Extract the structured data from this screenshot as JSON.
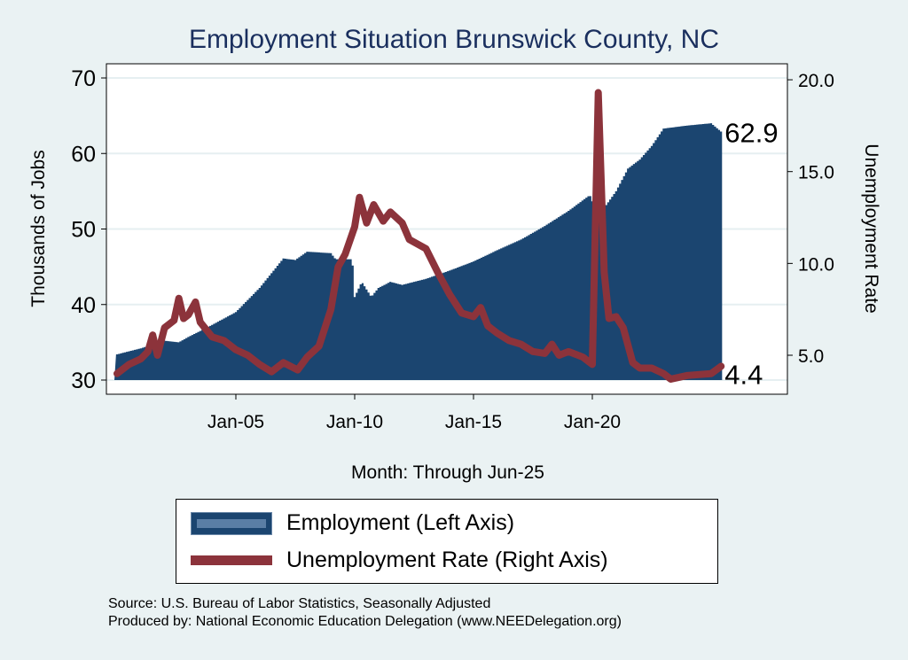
{
  "chart_data": {
    "type": "area+line",
    "title": "Employment Situation Brunswick  County, NC",
    "xlabel": "Month: Through Jun-25",
    "ylabel": "Thousands of Jobs",
    "y2label": "Unemployment Rate",
    "x_ticks": [
      {
        "label": "Jan-05",
        "x": 2005
      },
      {
        "label": "Jan-10",
        "x": 2010
      },
      {
        "label": "Jan-15",
        "x": 2015
      },
      {
        "label": "Jan-20",
        "x": 2020
      }
    ],
    "y_ticks": [
      "30",
      "40",
      "50",
      "60",
      "70"
    ],
    "y_tick_values": [
      30,
      40,
      50,
      60,
      70
    ],
    "y2_ticks": [
      "5.0",
      "10.0",
      "15.0",
      "20.0"
    ],
    "y2_tick_values": [
      5,
      10,
      15,
      20
    ],
    "ylim": [
      30,
      70
    ],
    "y2lim": [
      5,
      20
    ],
    "grid": true,
    "series": [
      {
        "name": "Employment (Left Axis)",
        "axis": "left",
        "color": "#1b4570",
        "points": [
          [
            2000.0,
            33.4
          ],
          [
            2001.0,
            34.2
          ],
          [
            2002.0,
            35.2
          ],
          [
            2002.6,
            35.0
          ],
          [
            2003.0,
            35.7
          ],
          [
            2004.0,
            37.3
          ],
          [
            2005.0,
            39.0
          ],
          [
            2006.0,
            42.2
          ],
          [
            2007.0,
            46.1
          ],
          [
            2007.5,
            45.9
          ],
          [
            2008.0,
            47.0
          ],
          [
            2009.0,
            46.8
          ],
          [
            2009.2,
            46.0
          ],
          [
            2009.9,
            46.0
          ],
          [
            2010.0,
            41.0
          ],
          [
            2010.3,
            43.0
          ],
          [
            2010.7,
            41.0
          ],
          [
            2011.0,
            42.2
          ],
          [
            2011.5,
            43.0
          ],
          [
            2012.0,
            42.6
          ],
          [
            2013.0,
            43.4
          ],
          [
            2014.0,
            44.5
          ],
          [
            2015.0,
            45.7
          ],
          [
            2016.0,
            47.2
          ],
          [
            2017.0,
            48.6
          ],
          [
            2018.0,
            50.4
          ],
          [
            2019.0,
            52.4
          ],
          [
            2019.9,
            54.5
          ],
          [
            2020.25,
            51.6
          ],
          [
            2020.5,
            52.8
          ],
          [
            2021.0,
            55.0
          ],
          [
            2021.5,
            58.0
          ],
          [
            2022.0,
            59.2
          ],
          [
            2022.5,
            61.0
          ],
          [
            2023.0,
            63.3
          ],
          [
            2024.0,
            63.7
          ],
          [
            2025.0,
            64.0
          ],
          [
            2025.42,
            62.9
          ]
        ]
      },
      {
        "name": "Unemployment Rate (Right Axis)",
        "axis": "right",
        "color": "#8c333b",
        "points": [
          [
            2000.0,
            4.0
          ],
          [
            2000.5,
            4.5
          ],
          [
            2001.0,
            4.8
          ],
          [
            2001.3,
            5.2
          ],
          [
            2001.5,
            6.1
          ],
          [
            2001.7,
            5.0
          ],
          [
            2002.0,
            6.5
          ],
          [
            2002.4,
            6.9
          ],
          [
            2002.6,
            8.1
          ],
          [
            2002.8,
            7.0
          ],
          [
            2003.0,
            7.2
          ],
          [
            2003.3,
            7.9
          ],
          [
            2003.5,
            6.8
          ],
          [
            2004.0,
            6.0
          ],
          [
            2004.5,
            5.8
          ],
          [
            2005.0,
            5.3
          ],
          [
            2005.5,
            5.0
          ],
          [
            2006.0,
            4.5
          ],
          [
            2006.5,
            4.1
          ],
          [
            2007.0,
            4.6
          ],
          [
            2007.6,
            4.2
          ],
          [
            2008.0,
            4.9
          ],
          [
            2008.5,
            5.5
          ],
          [
            2009.0,
            7.5
          ],
          [
            2009.3,
            9.8
          ],
          [
            2009.6,
            10.5
          ],
          [
            2010.0,
            12.0
          ],
          [
            2010.2,
            13.6
          ],
          [
            2010.5,
            12.2
          ],
          [
            2010.8,
            13.2
          ],
          [
            2011.2,
            12.3
          ],
          [
            2011.5,
            12.8
          ],
          [
            2012.0,
            12.2
          ],
          [
            2012.3,
            11.3
          ],
          [
            2013.0,
            10.8
          ],
          [
            2013.5,
            9.5
          ],
          [
            2014.0,
            8.3
          ],
          [
            2014.5,
            7.3
          ],
          [
            2015.0,
            7.1
          ],
          [
            2015.3,
            7.6
          ],
          [
            2015.6,
            6.6
          ],
          [
            2016.0,
            6.2
          ],
          [
            2016.5,
            5.8
          ],
          [
            2017.0,
            5.6
          ],
          [
            2017.5,
            5.2
          ],
          [
            2018.0,
            5.1
          ],
          [
            2018.3,
            5.6
          ],
          [
            2018.6,
            5.0
          ],
          [
            2019.0,
            5.2
          ],
          [
            2019.6,
            4.9
          ],
          [
            2020.0,
            4.5
          ],
          [
            2020.25,
            19.3
          ],
          [
            2020.5,
            9.5
          ],
          [
            2020.7,
            7.0
          ],
          [
            2021.0,
            7.1
          ],
          [
            2021.3,
            6.5
          ],
          [
            2021.7,
            4.6
          ],
          [
            2022.0,
            4.3
          ],
          [
            2022.5,
            4.3
          ],
          [
            2023.0,
            4.0
          ],
          [
            2023.3,
            3.7
          ],
          [
            2024.0,
            3.9
          ],
          [
            2025.0,
            4.0
          ],
          [
            2025.42,
            4.4
          ]
        ]
      }
    ],
    "end_labels": {
      "employment": "62.9",
      "unemployment": "4.4"
    },
    "legend": {
      "placement": "bottom",
      "items": [
        "Employment (Left Axis)",
        "Unemployment Rate (Right Axis)"
      ]
    }
  },
  "footer": {
    "source": "Source: U.S. Bureau of Labor Statistics, Seasonally Adjusted",
    "produced": "Produced by: National Economic Education Delegation (www.NEEDelegation.org)"
  }
}
